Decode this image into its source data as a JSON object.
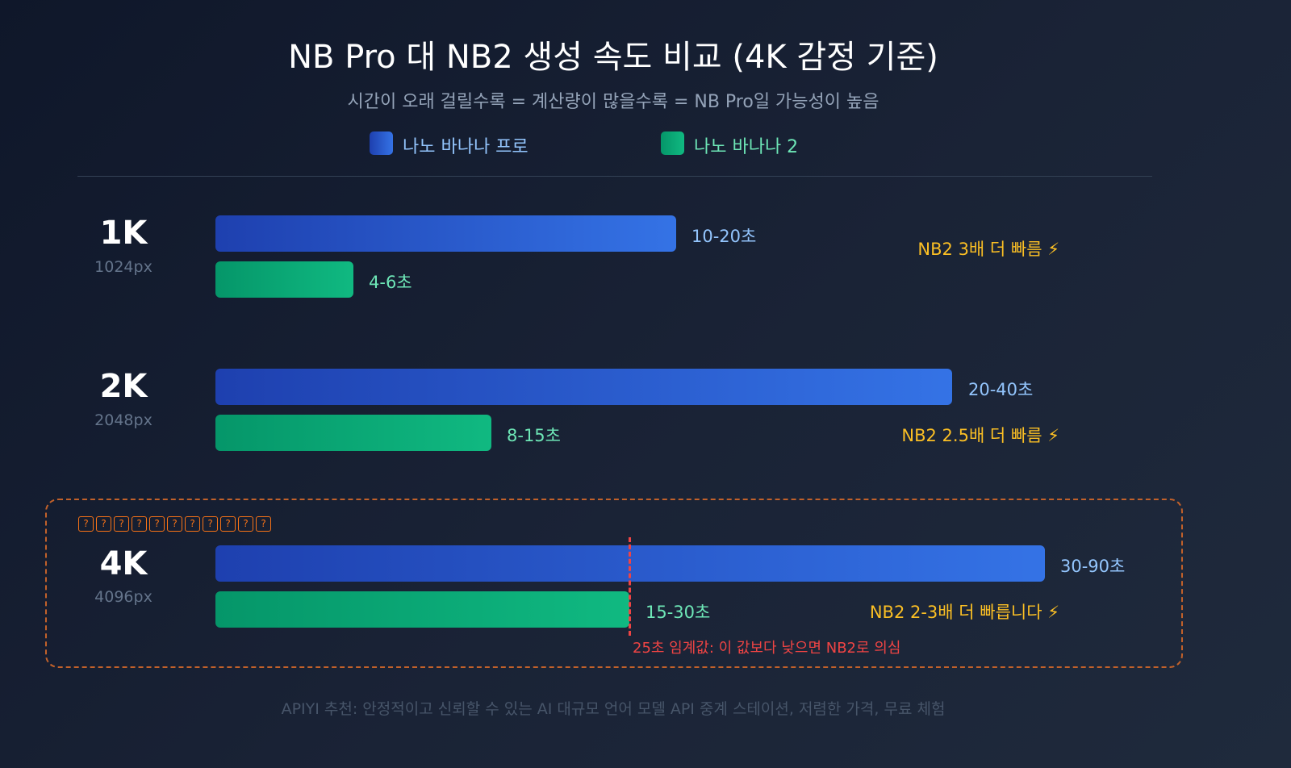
{
  "title": "NB Pro 대 NB2 생성 속도 비교 (4K 감정 기준)",
  "subtitle": "시간이 오래 걸릴수록 = 계산량이 많을수록 = NB Pro일 가능성이 높음",
  "legend": [
    {
      "label": "나노 바나나 프로",
      "color": "#3b82f6"
    },
    {
      "label": "나노 바나나 2",
      "color": "#10b981"
    }
  ],
  "chart_data": {
    "type": "bar",
    "orientation": "horizontal",
    "categories": [
      "1K",
      "2K",
      "4K"
    ],
    "category_sublabels": [
      "1024px",
      "2048px",
      "4096px"
    ],
    "series": [
      {
        "name": "나노 바나나 프로",
        "ranges": [
          [
            10,
            20
          ],
          [
            20,
            40
          ],
          [
            30,
            90
          ]
        ],
        "labels": [
          "10-20초",
          "20-40초",
          "30-90초"
        ],
        "color": "#3b82f6"
      },
      {
        "name": "나노 바나나 2",
        "ranges": [
          [
            4,
            6
          ],
          [
            8,
            15
          ],
          [
            15,
            30
          ]
        ],
        "labels": [
          "4-6초",
          "8-15초",
          "15-30초"
        ],
        "color": "#10b981"
      }
    ],
    "speed_notes": [
      "NB2 3배 더 빠름 ⚡",
      "NB2 2.5배 더 빠름 ⚡",
      "NB2 2-3배 더 빠릅니다 ⚡"
    ],
    "threshold": {
      "value": 25,
      "label": "25초 임계값: 이 값보다 낮으면 NB2로 의심",
      "color": "#ef4444"
    },
    "highlight_box_label": "???????????"
  },
  "footer": "APIYI 추천: 안정적이고 신뢰할 수 있는 AI 대규모 언어 모델 API 중계 스테이션, 저렴한 가격, 무료 체험"
}
